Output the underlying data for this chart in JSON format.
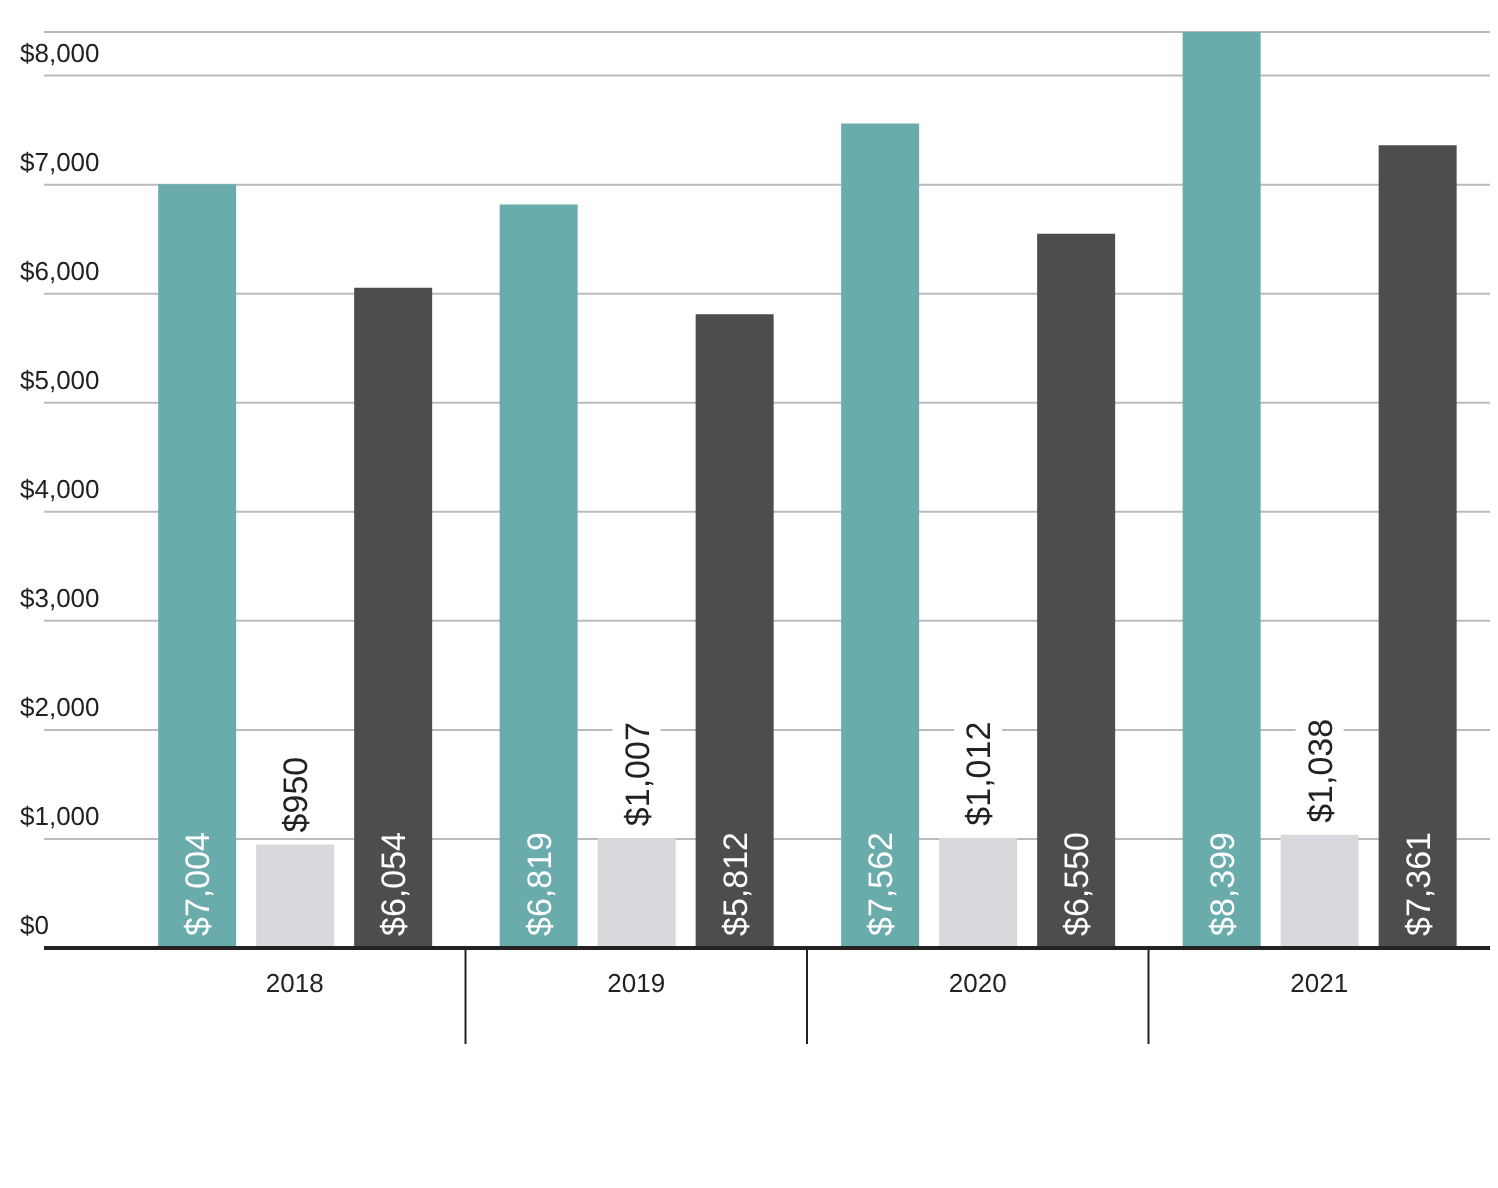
{
  "chart_data": {
    "type": "bar",
    "categories": [
      "2018",
      "2019",
      "2020",
      "2021"
    ],
    "series": [
      {
        "color": "#6aabac",
        "values": [
          7004,
          6819,
          7562,
          8399
        ]
      },
      {
        "color": "#d9d8dd",
        "values": [
          950,
          1007,
          1012,
          1038
        ]
      },
      {
        "color": "#4d4d4f",
        "values": [
          6054,
          5812,
          6550,
          7361
        ]
      }
    ],
    "ylim": [
      0,
      8400
    ],
    "yticks": [
      {
        "value": 0,
        "label": "$0"
      },
      {
        "value": 1000,
        "label": "$1,000"
      },
      {
        "value": 2000,
        "label": "$2,000"
      },
      {
        "value": 3000,
        "label": "$3,000"
      },
      {
        "value": 4000,
        "label": "$4,000"
      },
      {
        "value": 5000,
        "label": "$5,000"
      },
      {
        "value": 6000,
        "label": "$6,000"
      },
      {
        "value": 7000,
        "label": "$7,000"
      },
      {
        "value": 8000,
        "label": "$8,000"
      }
    ],
    "value_labels": [
      [
        "$7,004",
        "$6,819",
        "$7,562",
        "$8,399"
      ],
      [
        "$950",
        "$1,007",
        "$1,012",
        "$1,038"
      ],
      [
        "$6,054",
        "$5,812",
        "$6,550",
        "$7,361"
      ]
    ],
    "grid": "y",
    "legend": false
  }
}
